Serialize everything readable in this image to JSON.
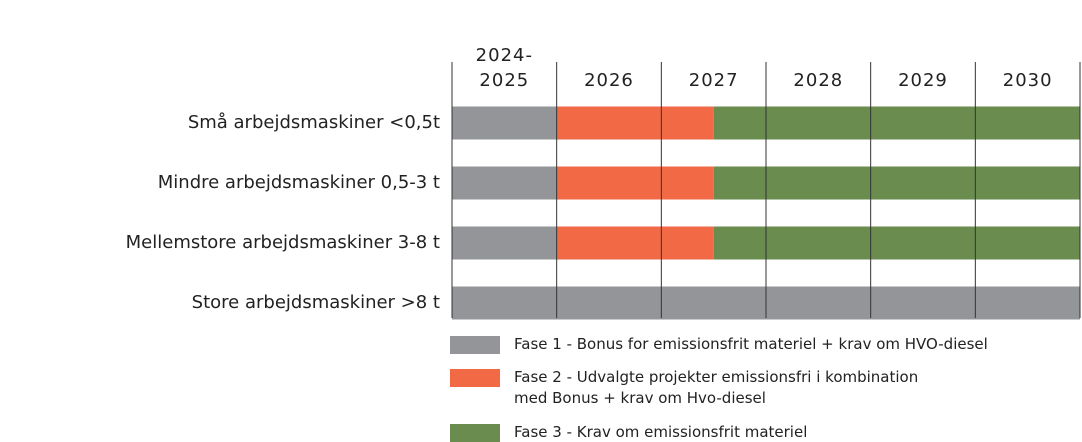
{
  "chart_data": {
    "type": "gantt",
    "categories": [
      "2024-\n2025",
      "2026",
      "2027",
      "2028",
      "2029",
      "2030"
    ],
    "rows": [
      "Små arbejdsmaskiner <0,5t",
      "Mindre arbejdsmaskiner 0,5-3 t",
      "Mellemstore arbejdsmaskiner 3-8 t",
      "Store arbejdsmaskiner >8 t"
    ],
    "xlim": [
      0,
      6
    ],
    "series": [
      {
        "name": "Fase 1 - Bonus for emissionsfrit materiel + krav om HVO-diesel",
        "color": "#939598",
        "values": [
          [
            0,
            1
          ],
          [
            0,
            1
          ],
          [
            0,
            1
          ],
          [
            0,
            6
          ]
        ]
      },
      {
        "name": "Fase 2 - Udvalgte projekter emissionsfri i kombination\nmed Bonus + krav om Hvo-diesel",
        "color": "#f26a45",
        "values": [
          [
            1,
            2.5
          ],
          [
            1,
            2.5
          ],
          [
            1,
            2.5
          ],
          null
        ]
      },
      {
        "name": "Fase 3 - Krav om emissionsfrit materiel",
        "color": "#6a8c4f",
        "values": [
          [
            2.5,
            6
          ],
          [
            2.5,
            6
          ],
          [
            2.5,
            6
          ],
          null
        ]
      }
    ]
  }
}
